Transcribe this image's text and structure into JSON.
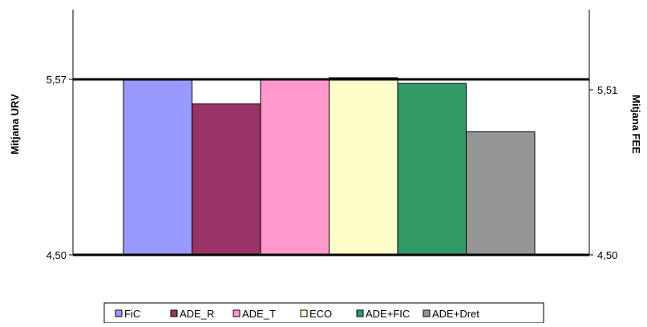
{
  "chart_data": {
    "type": "bar",
    "categories": [
      "FiC",
      "ADE_R",
      "ADE_T",
      "ECO",
      "ADE+FIC",
      "ADE+Dret"
    ],
    "series": [
      {
        "name": "",
        "values": [
          5.565,
          5.42,
          5.57,
          5.58,
          5.545,
          5.25
        ],
        "colors": [
          "#9999ff",
          "#993366",
          "#ff99cc",
          "#ffffcc",
          "#339966",
          "#969696"
        ]
      }
    ],
    "y_left": {
      "label": "Mitjana URV",
      "ticks": [
        "5,57",
        "4,50"
      ],
      "range": [
        4.5,
        5.57
      ]
    },
    "y_right": {
      "label": "Mitjana FEE",
      "ticks": [
        "5,51",
        "4,50"
      ]
    },
    "reference_lines": [
      5.57,
      4.5
    ],
    "legend": {
      "position": "bottom",
      "items": [
        {
          "label": "FiC",
          "color": "#9999ff"
        },
        {
          "label": "ADE_R",
          "color": "#993366"
        },
        {
          "label": "ADE_T",
          "color": "#ff99cc"
        },
        {
          "label": "ECO",
          "color": "#ffffcc"
        },
        {
          "label": "ADE+FIC",
          "color": "#339966"
        },
        {
          "label": "ADE+Dret",
          "color": "#969696"
        }
      ]
    }
  }
}
